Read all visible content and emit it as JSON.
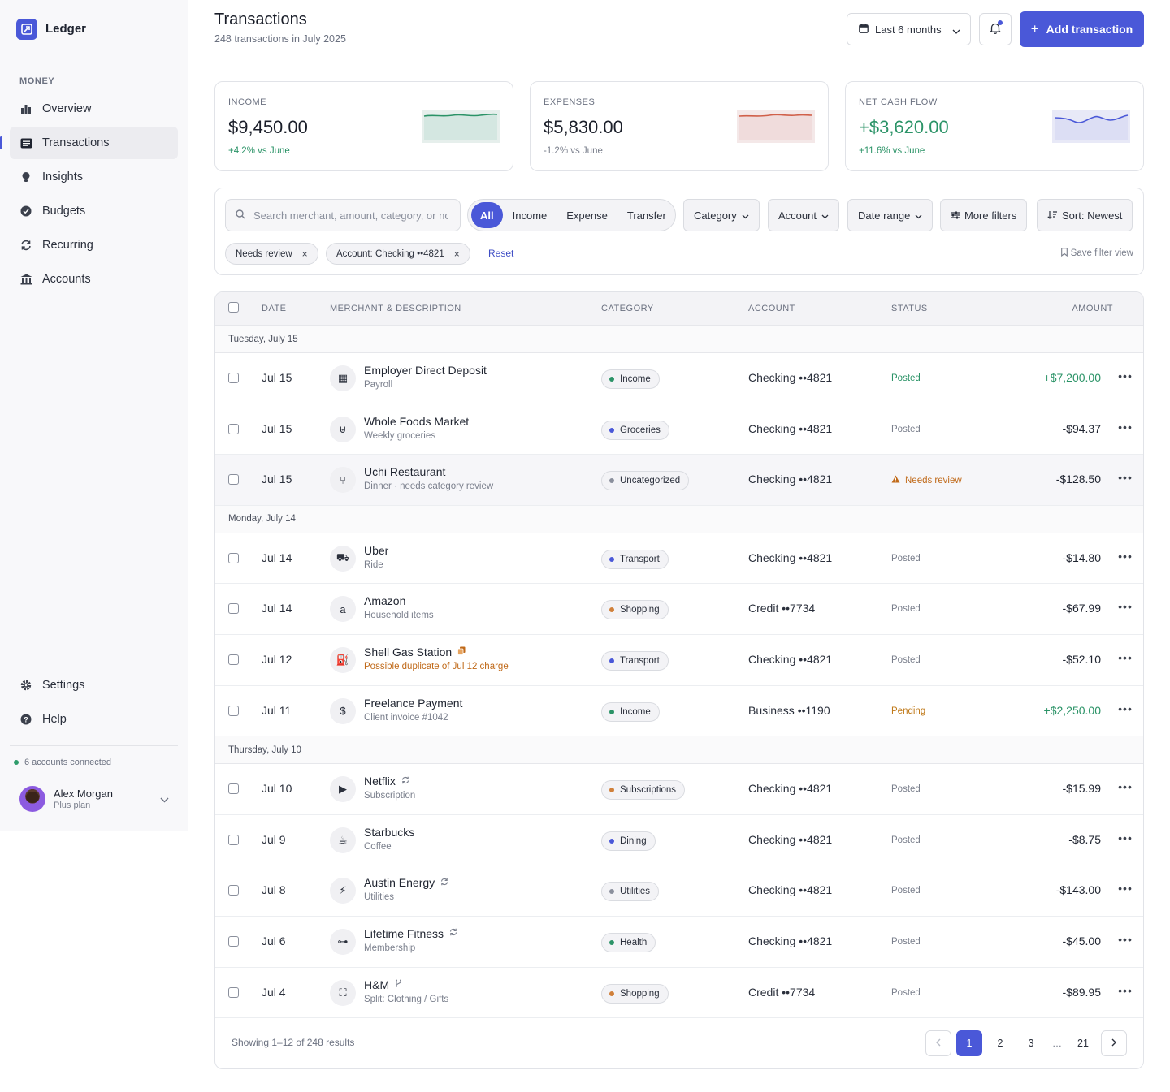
{
  "app": {
    "name": "Ledger"
  },
  "sidebar": {
    "section_label": "MONEY",
    "items": [
      {
        "label": "Overview",
        "icon": "bar-chart-icon"
      },
      {
        "label": "Transactions",
        "icon": "list-icon",
        "active": true
      },
      {
        "label": "Insights",
        "icon": "lightbulb-icon"
      },
      {
        "label": "Budgets",
        "icon": "check-circle-icon"
      },
      {
        "label": "Recurring",
        "icon": "refresh-icon"
      },
      {
        "label": "Accounts",
        "icon": "bank-icon"
      }
    ],
    "bottom_items": [
      {
        "label": "Settings",
        "icon": "gear-icon"
      },
      {
        "label": "Help",
        "icon": "help-icon"
      }
    ],
    "accounts_connected": "6 accounts connected",
    "user": {
      "name": "Alex Morgan",
      "plan": "Plus plan"
    }
  },
  "header": {
    "title": "Transactions",
    "subtitle": "248 transactions in July 2025",
    "date_range": "Last 6 months",
    "add_label": "Add transaction"
  },
  "cards": [
    {
      "label": "INCOME",
      "value": "$9,450.00",
      "change": "+4.2% vs June",
      "color": "#2b9367"
    },
    {
      "label": "EXPENSES",
      "value": "$5,830.00",
      "change": "-1.2% vs June",
      "color": "#d0604a"
    },
    {
      "label": "NET CASH FLOW",
      "value": "+$3,620.00",
      "change": "+11.6% vs June",
      "color": "#4a58d8"
    }
  ],
  "filters": {
    "search_placeholder": "Search merchant, amount, category, or note",
    "segments": [
      "All",
      "Income",
      "Expense",
      "Transfer"
    ],
    "buttons": [
      "Category",
      "Account",
      "Date range",
      "More filters",
      "Sort: Newest"
    ],
    "chips": [
      "Needs review",
      "Account: Checking ••4821"
    ],
    "reset": "Reset",
    "save_view": "Save filter view"
  },
  "table": {
    "headers": {
      "date": "DATE",
      "merchant": "MERCHANT & DESCRIPTION",
      "category": "CATEGORY",
      "account": "ACCOUNT",
      "status": "STATUS",
      "amount": "AMOUNT"
    },
    "groups": [
      {
        "label": "Tuesday, July 15",
        "rows": [
          {
            "date": "Jul 15",
            "merchant": "Employer Direct Deposit",
            "desc": "Payroll",
            "icon": "building-icon",
            "glyph": "▦",
            "category": "Income",
            "cat_color": "#2b9367",
            "account": "Checking ••4821",
            "status": "Posted",
            "status_type": "posted-green",
            "amount": "+$7,200.00",
            "positive": true
          },
          {
            "date": "Jul 15",
            "merchant": "Whole Foods Market",
            "desc": "Weekly groceries",
            "icon": "basket-icon",
            "glyph": "⊎",
            "category": "Groceries",
            "cat_color": "#4a58d8",
            "account": "Checking ••4821",
            "status": "Posted",
            "status_type": "posted",
            "amount": "-$94.37"
          },
          {
            "date": "Jul 15",
            "merchant": "Uchi Restaurant",
            "desc": "Dinner · needs category review",
            "icon": "utensils-icon",
            "glyph": "⑂",
            "category": "Uncategorized",
            "cat_color": "#8a8f9c",
            "account": "Checking ••4821",
            "status": "Needs review",
            "status_type": "review",
            "amount": "-$128.50",
            "highlight": true
          }
        ]
      },
      {
        "label": "Monday, July 14",
        "rows": [
          {
            "date": "Jul 14",
            "merchant": "Uber",
            "desc": "Ride",
            "icon": "car-icon",
            "glyph": "⛟",
            "category": "Transport",
            "cat_color": "#4a58d8",
            "account": "Checking ••4821",
            "status": "Posted",
            "status_type": "posted",
            "amount": "-$14.80"
          },
          {
            "date": "Jul 14",
            "merchant": "Amazon",
            "desc": "Household items",
            "icon": "amazon-icon",
            "glyph": "a",
            "category": "Shopping",
            "cat_color": "#d0803a",
            "account": "Credit ••7734",
            "status": "Posted",
            "status_type": "posted",
            "amount": "-$67.99"
          },
          {
            "date": "Jul 12",
            "merchant": "Shell Gas Station",
            "desc": "Possible duplicate of Jul 12 charge",
            "desc_warn": true,
            "name_icon": "duplicate-icon",
            "icon": "fuel-icon",
            "glyph": "⛽",
            "category": "Transport",
            "cat_color": "#4a58d8",
            "account": "Checking ••4821",
            "status": "Posted",
            "status_type": "posted",
            "amount": "-$52.10"
          },
          {
            "date": "Jul 11",
            "merchant": "Freelance Payment",
            "desc": "Client invoice #1042",
            "icon": "invoice-icon",
            "glyph": "$",
            "category": "Income",
            "cat_color": "#2b9367",
            "account": "Business ••1190",
            "status": "Pending",
            "status_type": "pending",
            "amount": "+$2,250.00",
            "positive": true
          }
        ]
      },
      {
        "label": "Thursday, July 10",
        "rows": [
          {
            "date": "Jul 10",
            "merchant": "Netflix",
            "desc": "Subscription",
            "name_icon": "recurring-icon",
            "icon": "play-icon",
            "glyph": "▶",
            "category": "Subscriptions",
            "cat_color": "#d0803a",
            "account": "Checking ••4821",
            "status": "Posted",
            "status_type": "posted",
            "amount": "-$15.99"
          },
          {
            "date": "Jul 9",
            "merchant": "Starbucks",
            "desc": "Coffee",
            "icon": "coffee-icon",
            "glyph": "☕",
            "category": "Dining",
            "cat_color": "#4a58d8",
            "account": "Checking ••4821",
            "status": "Posted",
            "status_type": "posted",
            "amount": "-$8.75"
          },
          {
            "date": "Jul 8",
            "merchant": "Austin Energy",
            "desc": "Utilities",
            "name_icon": "recurring-icon",
            "icon": "bolt-icon",
            "glyph": "⚡",
            "category": "Utilities",
            "cat_color": "#8a8f9c",
            "account": "Checking ••4821",
            "status": "Posted",
            "status_type": "posted",
            "amount": "-$143.00"
          },
          {
            "date": "Jul 6",
            "merchant": "Lifetime Fitness",
            "desc": "Membership",
            "name_icon": "recurring-icon",
            "icon": "dumbbell-icon",
            "glyph": "⊶",
            "category": "Health",
            "cat_color": "#2b9367",
            "account": "Checking ••4821",
            "status": "Posted",
            "status_type": "posted",
            "amount": "-$45.00"
          },
          {
            "date": "Jul 4",
            "merchant": "H&M",
            "desc": "Split: Clothing / Gifts",
            "name_icon": "split-icon",
            "icon": "shirt-icon",
            "glyph": "⛶",
            "category": "Shopping",
            "cat_color": "#d0803a",
            "account": "Credit ••7734",
            "status": "Posted",
            "status_type": "posted",
            "amount": "-$89.95"
          }
        ]
      }
    ],
    "footer": {
      "text": "Showing 1–12 of 248 results",
      "pages": [
        "1",
        "2",
        "3",
        "21"
      ],
      "current": "1"
    }
  }
}
